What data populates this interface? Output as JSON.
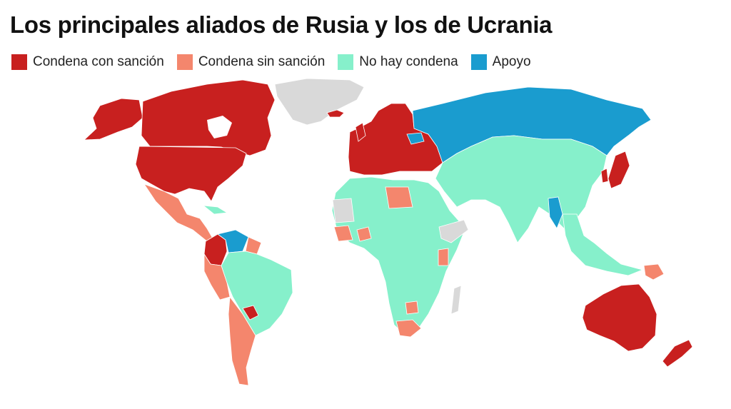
{
  "title": "Los principales aliados de Rusia y los de Ucrania",
  "legend": [
    {
      "label": "Condena con sanción",
      "color": "#c8201f"
    },
    {
      "label": "Condena sin sanción",
      "color": "#f4866d"
    },
    {
      "label": "No hay condena",
      "color": "#86f0cb"
    },
    {
      "label": "Apoyo",
      "color": "#1a9ccf"
    }
  ],
  "colors": {
    "condena_con_sancion": "#c8201f",
    "condena_sin_sancion": "#f4866d",
    "no_hay_condena": "#86f0cb",
    "apoyo": "#1a9ccf",
    "sin_datos": "#d9d9d9"
  },
  "map": {
    "type": "choropleth world map",
    "regions": [
      {
        "region": "Estados Unidos",
        "category": "Condena con sanción"
      },
      {
        "region": "Canadá",
        "category": "Condena con sanción"
      },
      {
        "region": "Unión Europea y Reino Unido",
        "category": "Condena con sanción"
      },
      {
        "region": "Japón",
        "category": "Condena con sanción"
      },
      {
        "region": "Australia",
        "category": "Condena con sanción"
      },
      {
        "region": "Nueva Zelanda",
        "category": "Condena con sanción"
      },
      {
        "region": "Colombia",
        "category": "Condena con sanción"
      },
      {
        "region": "Rusia",
        "category": "Apoyo"
      },
      {
        "region": "Bielorrusia",
        "category": "Apoyo"
      },
      {
        "region": "Venezuela",
        "category": "Apoyo"
      },
      {
        "region": "Myanmar",
        "category": "Apoyo"
      },
      {
        "region": "Corea del Norte",
        "category": "Apoyo"
      },
      {
        "region": "Siria",
        "category": "Apoyo"
      },
      {
        "region": "México",
        "category": "Condena sin sanción"
      },
      {
        "region": "Argentina",
        "category": "Condena sin sanción"
      },
      {
        "region": "Chile",
        "category": "Condena sin sanción"
      },
      {
        "region": "Perú",
        "category": "Condena sin sanción"
      },
      {
        "region": "Libia",
        "category": "Condena sin sanción"
      },
      {
        "region": "Sudáfrica",
        "category": "Condena sin sanción"
      },
      {
        "region": "Papúa Nueva Guinea",
        "category": "Condena sin sanción"
      },
      {
        "region": "China",
        "category": "No hay condena"
      },
      {
        "region": "India",
        "category": "No hay condena"
      },
      {
        "region": "Brasil",
        "category": "No hay condena"
      },
      {
        "region": "Asia Central",
        "category": "No hay condena"
      },
      {
        "region": "Oriente Medio",
        "category": "No hay condena"
      },
      {
        "region": "Mayor parte de África",
        "category": "No hay condena"
      },
      {
        "region": "Groenlandia",
        "category": "Sin datos"
      }
    ]
  }
}
